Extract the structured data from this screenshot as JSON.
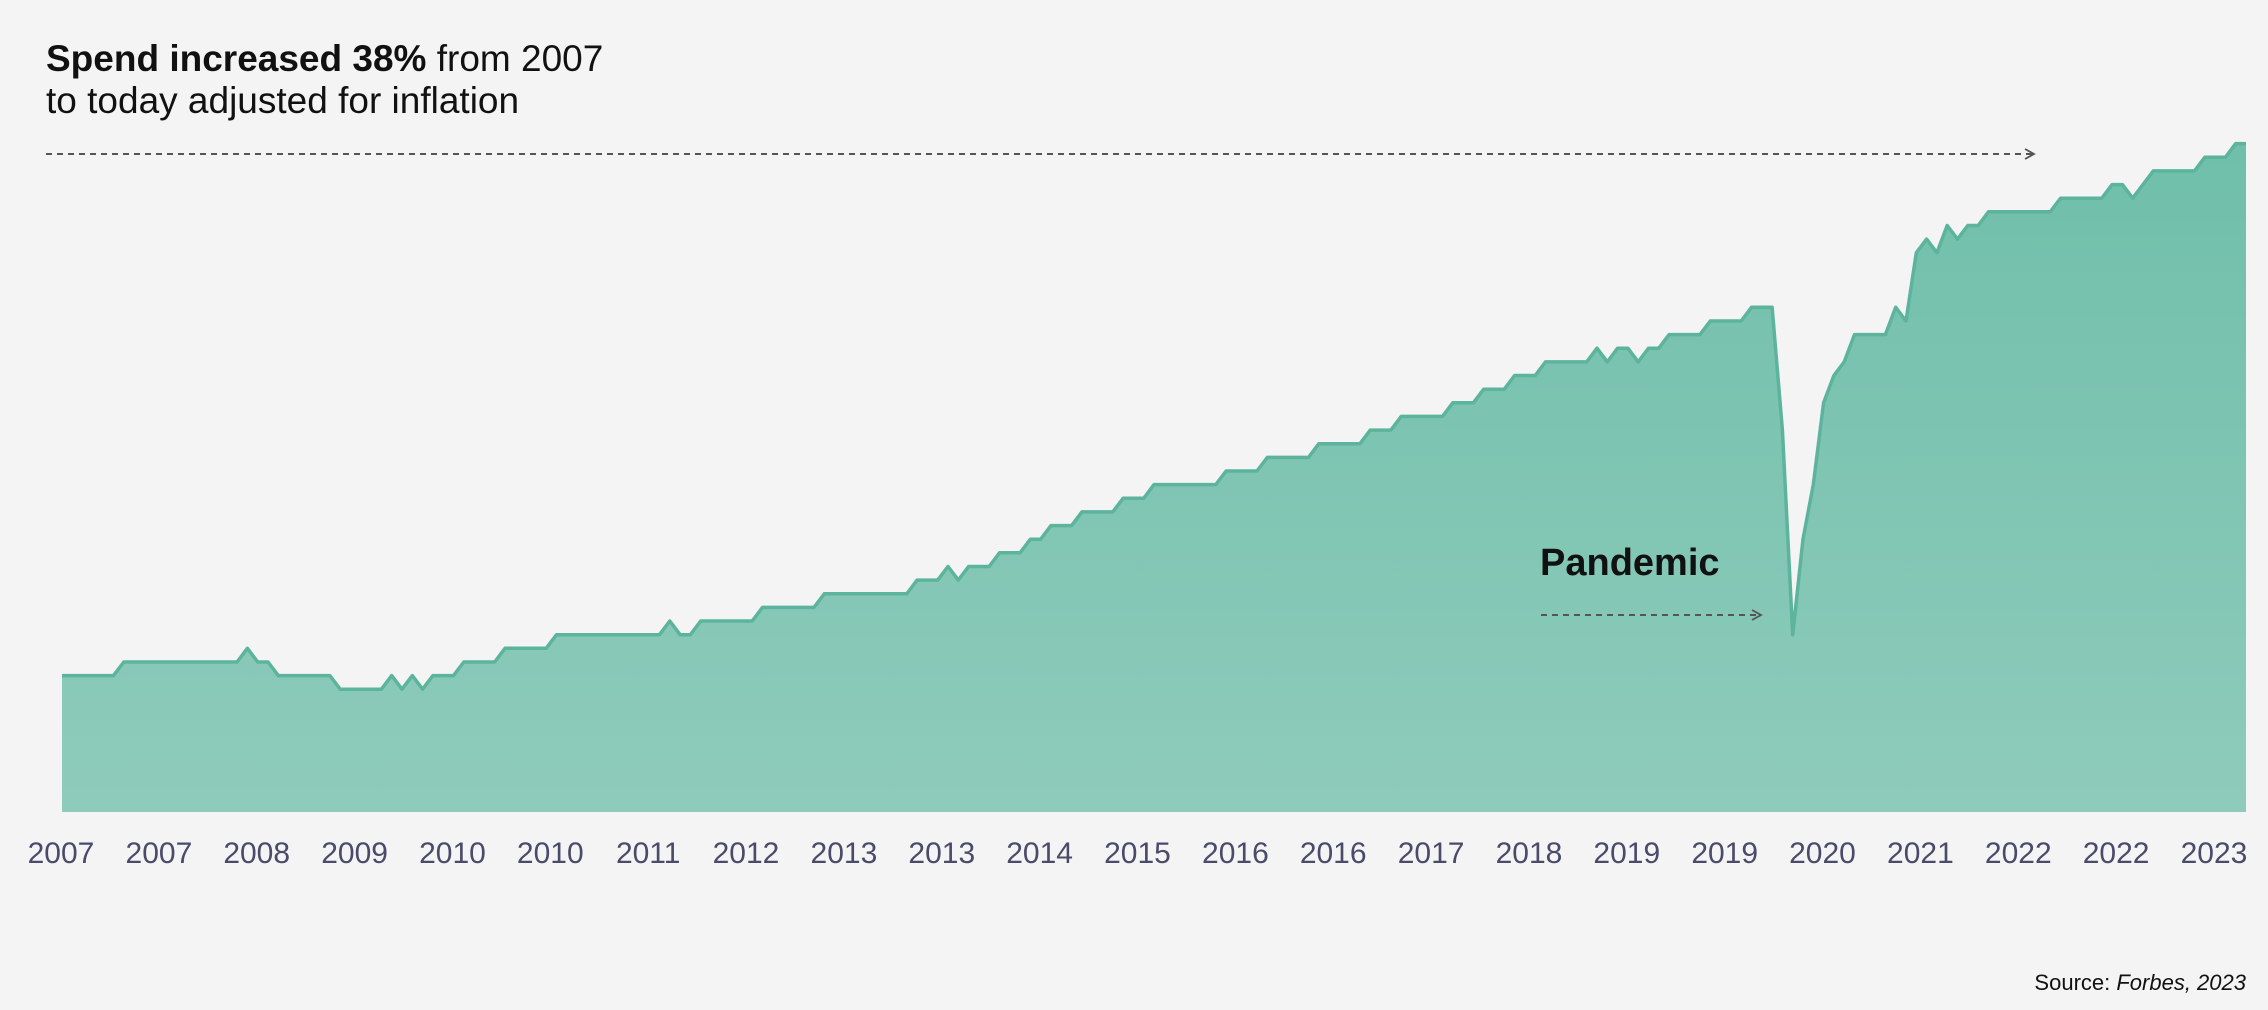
{
  "headline": {
    "bold": "Spend increased 38%",
    "rest_line1": " from 2007",
    "line2": "to today adjusted for inflation"
  },
  "annotation": {
    "text": "Pandemic"
  },
  "source": {
    "prefix": "Source: ",
    "name": "Forbes, 2023"
  },
  "colors": {
    "area_fill_top": "#6fbfaa",
    "area_fill_bottom": "#8fcbbb",
    "line": "#5db49d",
    "arrow": "#555555"
  },
  "chart_data": {
    "type": "area",
    "title": "",
    "xlabel": "",
    "ylabel": "",
    "grid": false,
    "legend": "none",
    "x_tick_labels": [
      "2007",
      "2007",
      "2008",
      "2009",
      "2010",
      "2010",
      "2011",
      "2012",
      "2013",
      "2013",
      "2014",
      "2015",
      "2016",
      "2016",
      "2017",
      "2018",
      "2019",
      "2019",
      "2020",
      "2021",
      "2022",
      "2022",
      "2023"
    ],
    "ylim": [
      0,
      100
    ],
    "series": [
      {
        "values": [
          20,
          20,
          20,
          20,
          20,
          20,
          22,
          22,
          22,
          22,
          22,
          22,
          22,
          22,
          22,
          22,
          22,
          22,
          24,
          22,
          22,
          20,
          20,
          20,
          20,
          20,
          20,
          18,
          18,
          18,
          18,
          18,
          20,
          18,
          20,
          18,
          20,
          20,
          20,
          22,
          22,
          22,
          22,
          24,
          24,
          24,
          24,
          24,
          26,
          26,
          26,
          26,
          26,
          26,
          26,
          26,
          26,
          26,
          26,
          28,
          26,
          26,
          28,
          28,
          28,
          28,
          28,
          28,
          30,
          30,
          30,
          30,
          30,
          30,
          32,
          32,
          32,
          32,
          32,
          32,
          32,
          32,
          32,
          34,
          34,
          34,
          36,
          34,
          36,
          36,
          36,
          38,
          38,
          38,
          40,
          40,
          42,
          42,
          42,
          44,
          44,
          44,
          44,
          46,
          46,
          46,
          48,
          48,
          48,
          48,
          48,
          48,
          48,
          50,
          50,
          50,
          50,
          52,
          52,
          52,
          52,
          52,
          54,
          54,
          54,
          54,
          54,
          56,
          56,
          56,
          58,
          58,
          58,
          58,
          58,
          60,
          60,
          60,
          62,
          62,
          62,
          64,
          64,
          64,
          66,
          66,
          66,
          66,
          66,
          68,
          66,
          68,
          68,
          66,
          68,
          68,
          70,
          70,
          70,
          70,
          72,
          72,
          72,
          72,
          74,
          74,
          74,
          56,
          26,
          40,
          48,
          60,
          64,
          66,
          70,
          70,
          70,
          70,
          74,
          72,
          82,
          84,
          82,
          86,
          84,
          86,
          86,
          88,
          88,
          88,
          88,
          88,
          88,
          88,
          90,
          90,
          90,
          90,
          90,
          92,
          92,
          90,
          92,
          94,
          94,
          94,
          94,
          94,
          96,
          96,
          96,
          98,
          98
        ]
      }
    ],
    "annotations": [
      {
        "text": "Spend increased 38% from 2007 to today adjusted for inflation"
      },
      {
        "text": "Pandemic"
      }
    ]
  }
}
